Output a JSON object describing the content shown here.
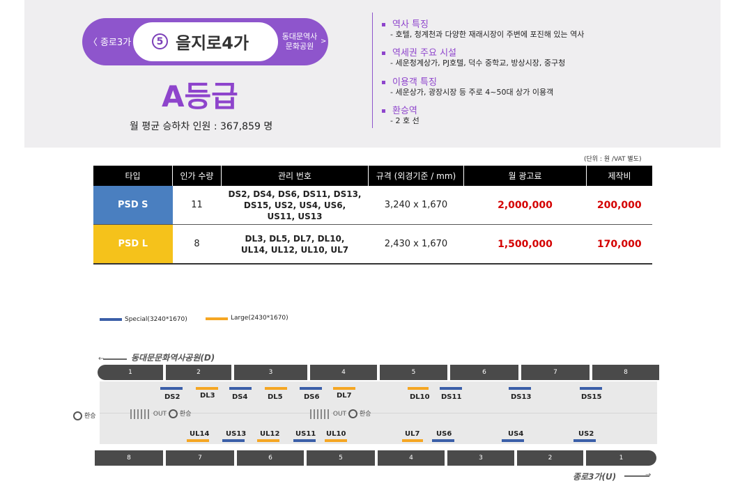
{
  "header": {
    "prev_station": "〈 종로3가",
    "line_number": "5",
    "station": "을지로4가",
    "next_station_l1": "동대문역사",
    "next_station_l2": "문화공원",
    "next_chevron": ">",
    "grade": "A등급",
    "ridership": "월 평균 승하차 인원 :  367,859 명",
    "info": [
      {
        "title": "역사 특징",
        "text": "-  호텔, 청계천과 다양한 재래시장이 주변에 포진해 있는 역사"
      },
      {
        "title": "역세권 주요 시설",
        "text": "-  세운청계상가, PJ호텔, 덕수 중학교, 방상시장, 중구청"
      },
      {
        "title": "이용객 특징",
        "text": "-  세운상가, 광장시장 등 주로 4~50대 상가 이용객"
      },
      {
        "title": "환승역",
        "text": "-  2 호 선"
      }
    ]
  },
  "table": {
    "unit_note": "(단위 : 원 /VAT 별도)",
    "headers": [
      "타입",
      "인가 수량",
      "관리 번호",
      "규격 (외경기준 / mm)",
      "월 광고료",
      "제작비"
    ],
    "rows": [
      {
        "type": "PSD S",
        "qty": "11",
        "codes": [
          "DS2, DS4, DS6, DS11, DS13,",
          "DS15, US2, US4, US6,",
          "US11, US13"
        ],
        "size": "3,240 x 1,670",
        "monthly": "2,000,000",
        "production": "200,000"
      },
      {
        "type": "PSD L",
        "qty": "8",
        "codes": [
          "DL3, DL5, DL7, DL10,",
          "UL14, UL12, UL10, UL7"
        ],
        "size": "2,430 x 1,670",
        "monthly": "1,500,000",
        "production": "170,000"
      }
    ]
  },
  "diagram": {
    "legend": [
      {
        "label": "Special(3240*1670)",
        "color": "#3b5fa8"
      },
      {
        "label": "Large(2430*1670)",
        "color": "#f5a623"
      }
    ],
    "top_direction": "동대문문화역사공원(D)",
    "bottom_direction": "종로3가(U)",
    "top_doors": [
      "1",
      "2",
      "3",
      "4",
      "5",
      "6",
      "7",
      "8"
    ],
    "bottom_doors": [
      "8",
      "7",
      "6",
      "5",
      "4",
      "3",
      "2",
      "1"
    ],
    "top_codes": [
      "DS2",
      "DL3",
      "DS4",
      "DL5",
      "DS6",
      "DL7",
      "DL10",
      "DS11",
      "DS13",
      "DS15"
    ],
    "bottom_codes": [
      "UL14",
      "US13",
      "UL12",
      "US11",
      "UL10",
      "UL7",
      "US6",
      "US4",
      "US2"
    ],
    "transfer_label": "환승",
    "out_label": "OUT",
    "colors": {
      "special": "#3b5fa8",
      "large": "#f5a623",
      "accent": "#8e44cc",
      "price": "#d40000"
    }
  }
}
